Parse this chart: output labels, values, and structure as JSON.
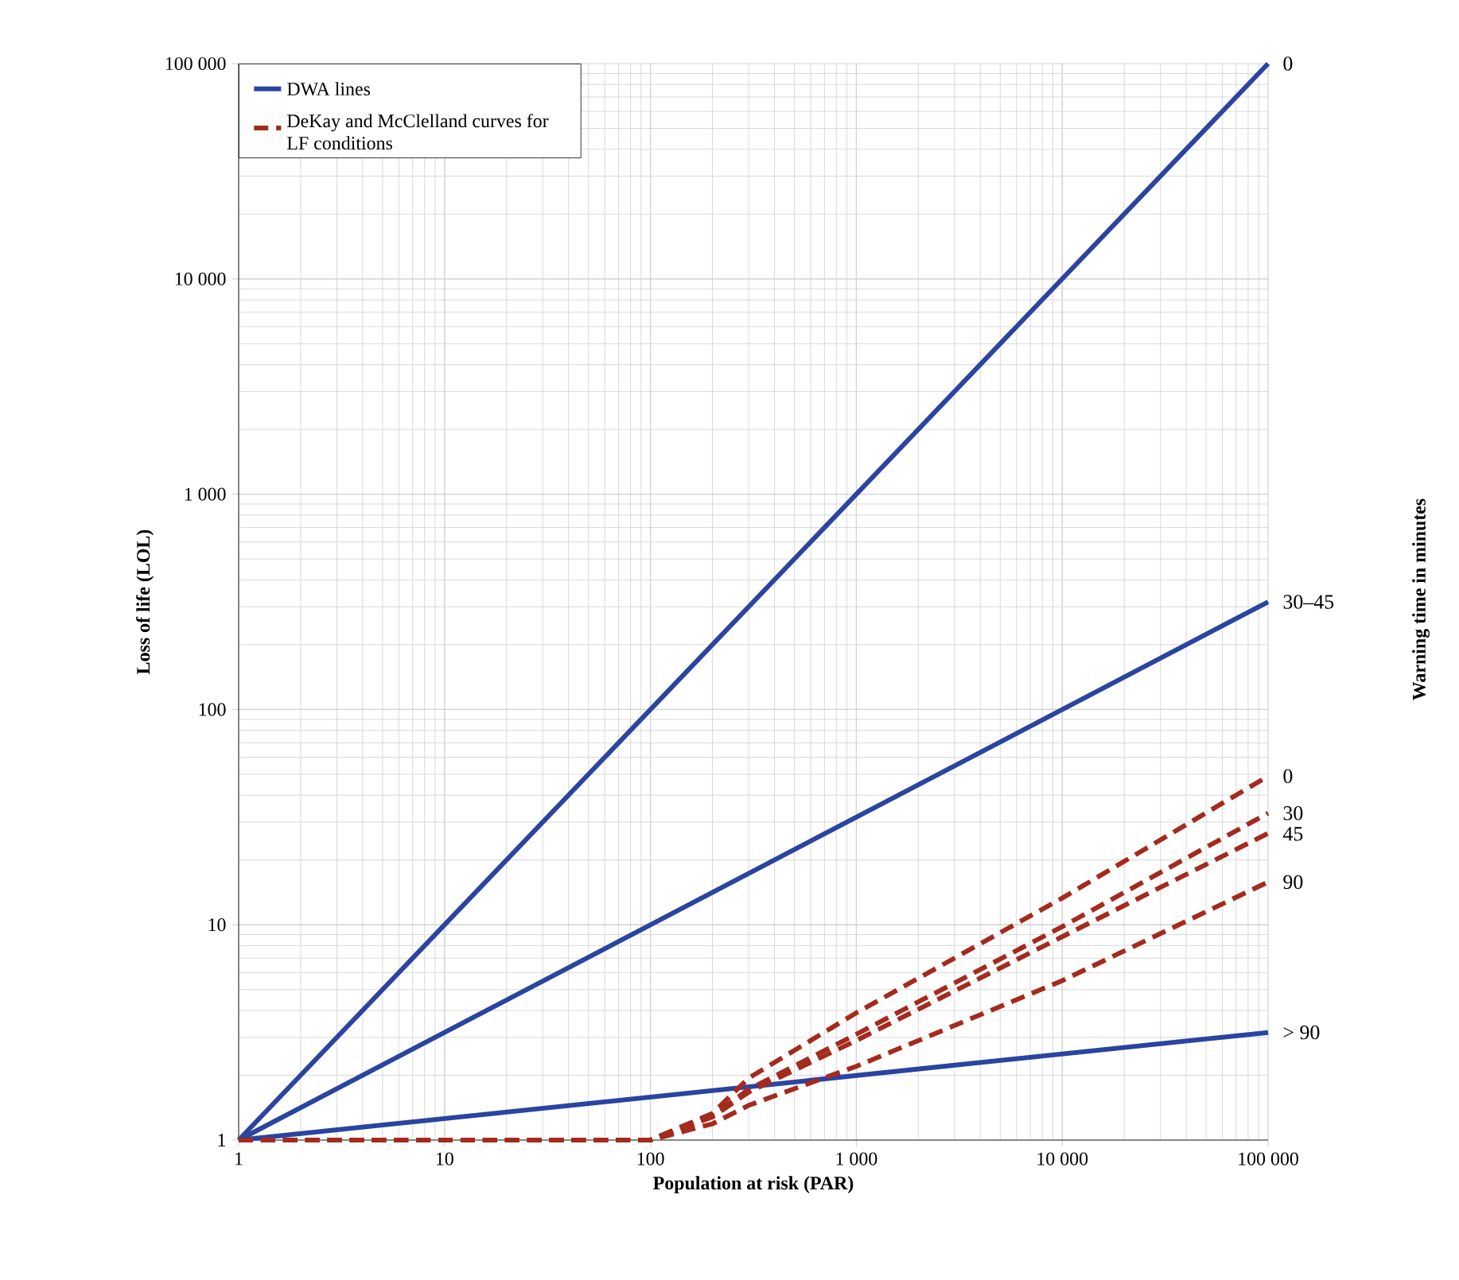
{
  "chart_data": {
    "type": "line",
    "xlabel": "Population at risk (PAR)",
    "ylabel": "Loss of life (LOL)",
    "log": "xy",
    "grid": true,
    "legend": "top left",
    "annotations": [
      "Warning time in minutes",
      "0",
      "30–45",
      "> 90",
      "0",
      "30",
      "45",
      "90"
    ],
    "xlim": [
      1,
      100000
    ],
    "ylim": [
      1,
      100000
    ],
    "xticks": [
      1,
      10,
      {
        "value": 100,
        "label": "100"
      },
      {
        "value": 1000,
        "label": "1 000"
      },
      {
        "value": 10000,
        "label": "10 000"
      },
      {
        "value": 100000,
        "label": "100 000"
      }
    ],
    "yticks": [
      1,
      10,
      100,
      {
        "value": 1000,
        "label": "1 000"
      },
      {
        "value": 10000,
        "label": "10 000"
      },
      {
        "value": 100000,
        "label": "100 000"
      }
    ],
    "series": [
      {
        "name": "DWA lines",
        "color": "#2a44a0",
        "line_style": "solid",
        "x": [
          1,
          100000
        ],
        "values": [
          1,
          100000
        ]
      },
      {
        "color": "#2a44a0",
        "line_style": "solid",
        "x": [
          1,
          100000
        ],
        "values": [
          1,
          316
        ]
      },
      {
        "color": "#2a44a0",
        "line_style": "solid",
        "x": [
          1,
          100000
        ],
        "values": [
          1,
          3.16
        ]
      },
      {
        "name": "DeKay and McClelland curves for LF conditions",
        "color": "#a52a1e",
        "line_style": "dashed",
        "x": [
          1,
          100,
          200,
          300,
          1000,
          10000,
          100000
        ],
        "values": [
          1,
          1,
          1.33,
          1.94,
          3.9,
          13.3,
          49
        ]
      },
      {
        "color": "#a52a1e",
        "line_style": "dashed",
        "x": [
          1,
          100,
          200,
          300,
          1000,
          10000,
          100000
        ],
        "values": [
          1,
          1,
          1.3,
          1.72,
          3.1,
          9.8,
          33
        ]
      },
      {
        "color": "#a52a1e",
        "line_style": "dashed",
        "x": [
          1,
          100,
          200,
          300,
          1000,
          10000,
          100000
        ],
        "values": [
          1,
          1,
          1.28,
          1.67,
          2.9,
          8.8,
          26.6
        ]
      },
      {
        "color": "#a52a1e",
        "line_style": "dashed",
        "x": [
          1,
          100,
          200,
          300,
          1000,
          10000,
          100000
        ],
        "values": [
          1,
          1,
          1.19,
          1.45,
          2.2,
          5.5,
          15.8
        ]
      }
    ]
  }
}
